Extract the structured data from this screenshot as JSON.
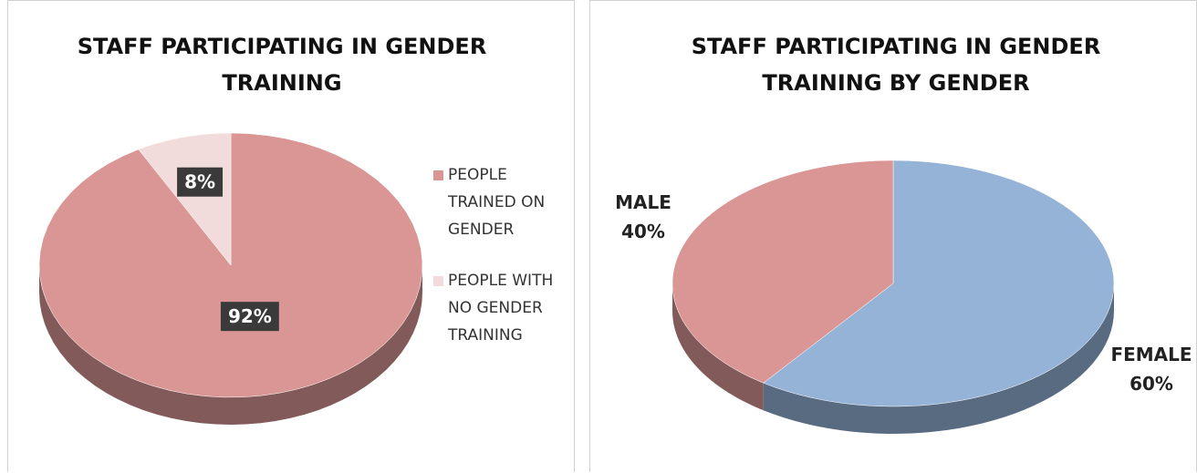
{
  "chart_data": [
    {
      "type": "pie",
      "title": "STAFF PARTICIPATING IN GENDER TRAINING",
      "categories": [
        "PEOPLE TRAINED ON GENDER",
        "PEOPLE WITH NO GENDER TRAINING"
      ],
      "values": [
        92,
        8
      ],
      "value_labels": [
        "92%",
        "8%"
      ],
      "colors": [
        "#d99694",
        "#f2dcdb"
      ],
      "legend": "right"
    },
    {
      "type": "pie",
      "title": "STAFF PARTICIPATING IN GENDER TRAINING BY GENDER",
      "categories": [
        "FEMALE",
        "MALE"
      ],
      "values": [
        60,
        40
      ],
      "value_labels": [
        "60%",
        "40%"
      ],
      "colors": [
        "#95b3d7",
        "#d99694"
      ]
    }
  ]
}
